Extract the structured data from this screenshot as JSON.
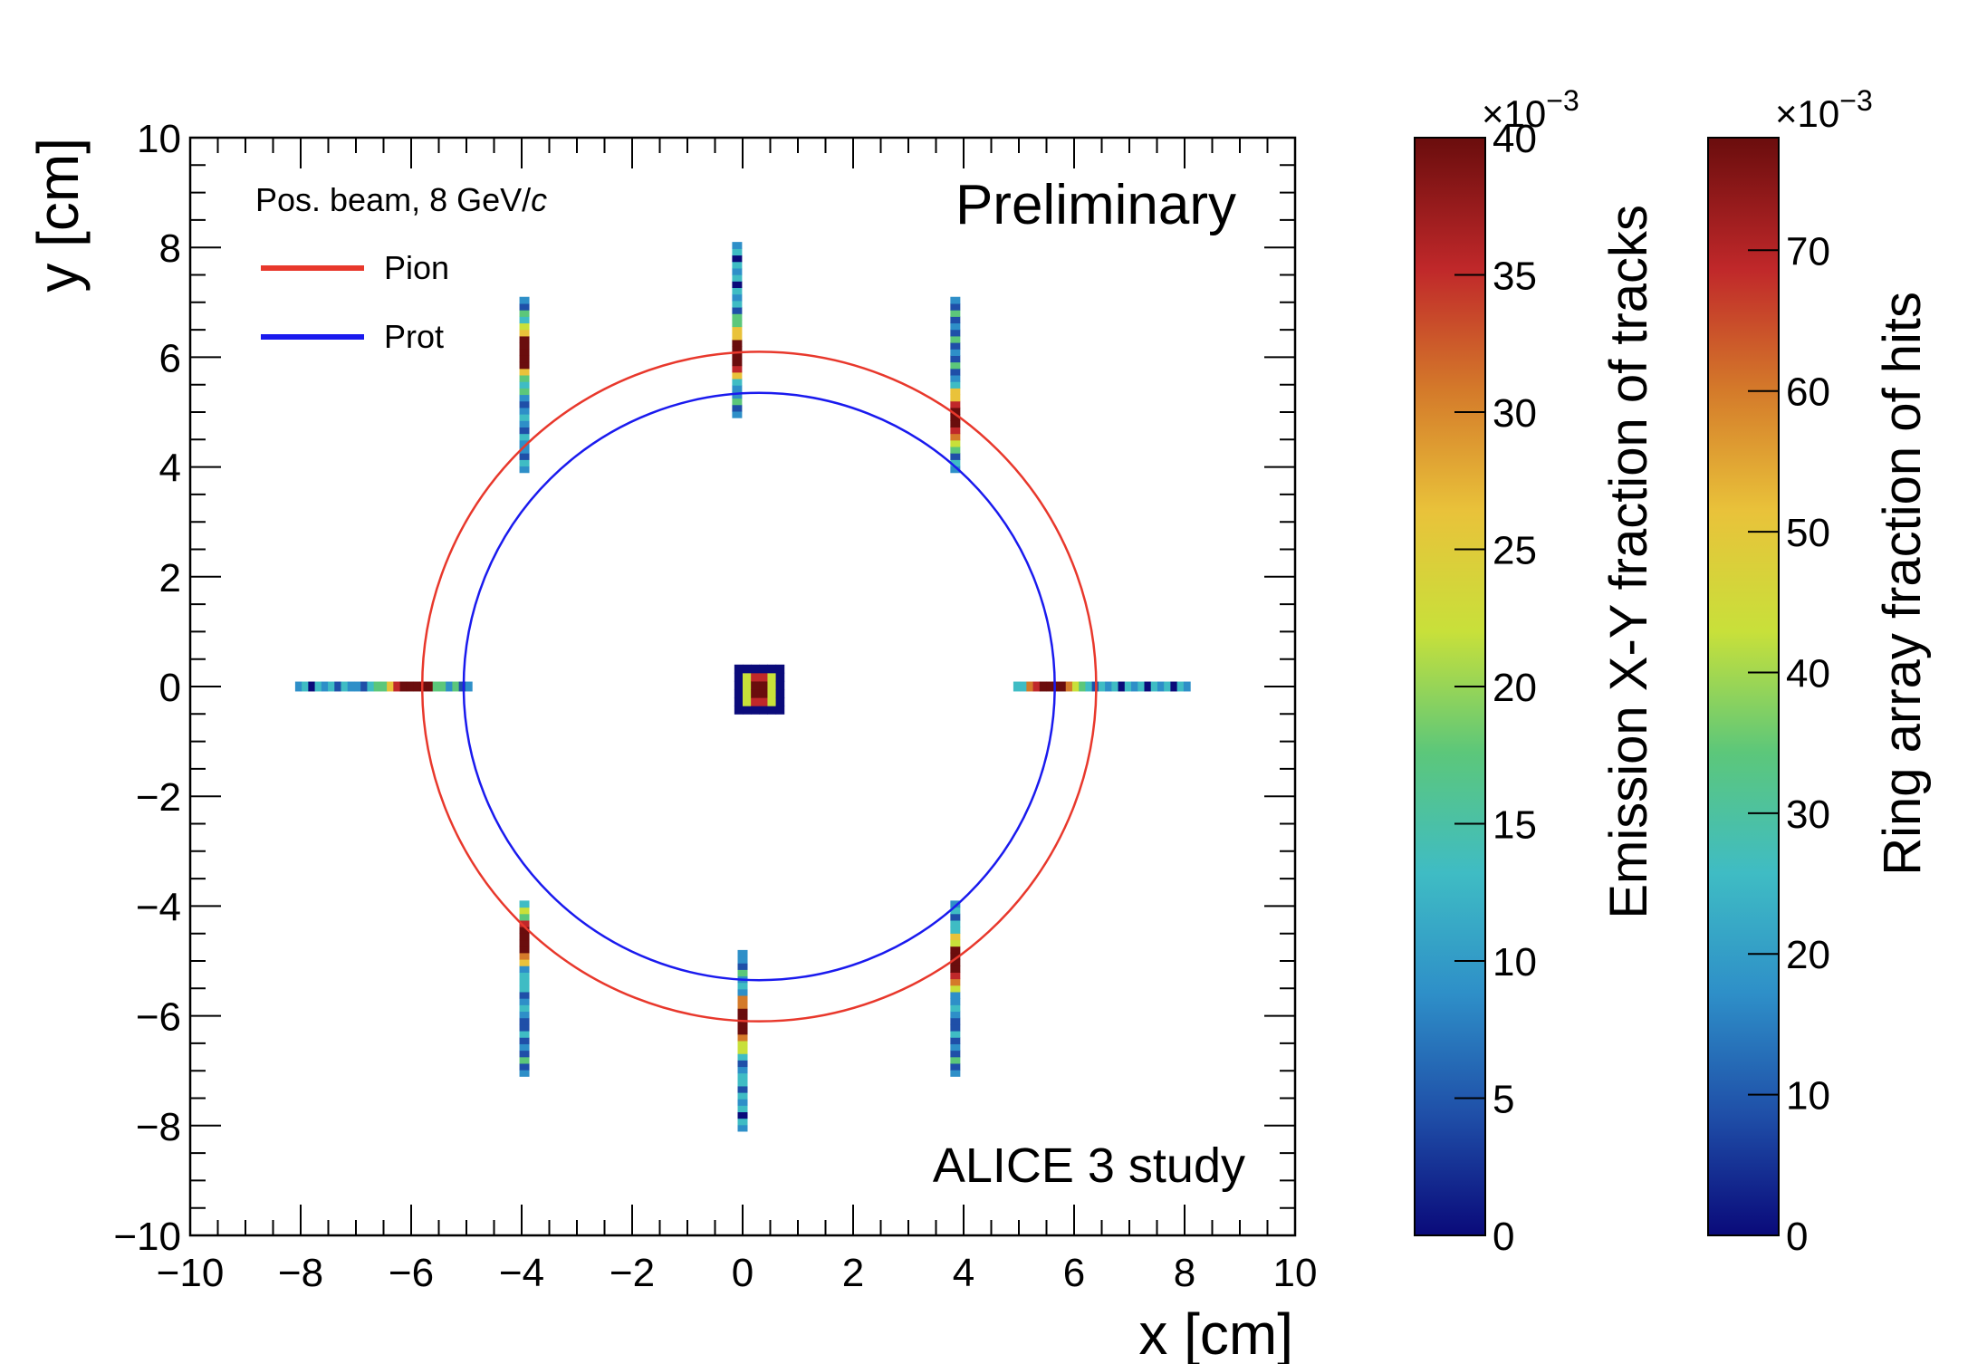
{
  "chart_data": {
    "type": "heatmap",
    "title": "",
    "xlabel": "x [cm]",
    "ylabel": "y [cm]",
    "xlim": [
      -10,
      10
    ],
    "ylim": [
      -10,
      10
    ],
    "x_ticks": [
      -10,
      -8,
      -6,
      -4,
      -2,
      0,
      2,
      4,
      6,
      8,
      10
    ],
    "y_ticks": [
      -10,
      -8,
      -6,
      -4,
      -2,
      0,
      2,
      4,
      6,
      8,
      10
    ],
    "x_tick_labels": [
      "−10",
      "−8",
      "−6",
      "−4",
      "−2",
      "0",
      "2",
      "4",
      "6",
      "8",
      "10"
    ],
    "y_tick_labels": [
      "−10",
      "−8",
      "−6",
      "−4",
      "−2",
      "0",
      "2",
      "4",
      "6",
      "8",
      "10"
    ],
    "annotations": {
      "preliminary": "Preliminary",
      "study": "ALICE 3 study"
    },
    "legend": {
      "title": "Pos. beam, 8 GeV/",
      "title_italic": "c",
      "position": "top-left",
      "entries": [
        {
          "label": "Pion",
          "color": "#e8382c"
        },
        {
          "label": "Prot",
          "color": "#1a1aee"
        }
      ]
    },
    "rings": [
      {
        "name": "Pion",
        "cx": 0.3,
        "cy": 0.0,
        "r": 6.1,
        "color": "#e8382c"
      },
      {
        "name": "Prot",
        "cx": 0.3,
        "cy": 0.0,
        "r": 5.35,
        "color": "#1a1aee"
      }
    ],
    "emission_hotspot": {
      "x_range": [
        -0.15,
        0.75
      ],
      "y_range": [
        -0.5,
        0.4
      ]
    },
    "detector_strips": [
      {
        "orientation": "vertical",
        "x": -3.95,
        "range": [
          3.9,
          7.1
        ],
        "peak": 6.1
      },
      {
        "orientation": "vertical",
        "x": -0.1,
        "range": [
          4.9,
          8.1
        ],
        "peak": 6.1
      },
      {
        "orientation": "vertical",
        "x": 3.85,
        "range": [
          3.9,
          7.1
        ],
        "peak": 4.9
      },
      {
        "orientation": "vertical",
        "x": -3.95,
        "range": [
          -7.1,
          -3.9
        ],
        "peak": -4.6
      },
      {
        "orientation": "vertical",
        "x": 0.0,
        "range": [
          -8.1,
          -4.8
        ],
        "peak": -6.1
      },
      {
        "orientation": "vertical",
        "x": 3.85,
        "range": [
          -7.1,
          -3.9
        ],
        "peak": -5.0
      },
      {
        "orientation": "horizontal",
        "y": 0.0,
        "range": [
          -8.1,
          -4.9
        ],
        "peak": -6.0
      },
      {
        "orientation": "horizontal",
        "y": 0.0,
        "range": [
          4.9,
          8.1
        ],
        "peak": 5.6
      }
    ],
    "colorbars": [
      {
        "title": "Emission X-Y fraction of tracks",
        "exponent": "×10",
        "exponent_power": "−3",
        "range": [
          0,
          40
        ],
        "ticks": [
          0,
          5,
          10,
          15,
          20,
          25,
          30,
          35,
          40
        ],
        "tick_labels": [
          "0",
          "5",
          "10",
          "15",
          "20",
          "25",
          "30",
          "35",
          "40"
        ]
      },
      {
        "title": "Ring array fraction of hits",
        "exponent": "×10",
        "exponent_power": "−3",
        "range": [
          0,
          78
        ],
        "ticks": [
          0,
          10,
          20,
          30,
          40,
          50,
          60,
          70
        ],
        "tick_labels": [
          "0",
          "10",
          "20",
          "30",
          "40",
          "50",
          "60",
          "70"
        ]
      }
    ],
    "colormap": [
      "#0a0a7a",
      "#1f4fa8",
      "#2e8fc8",
      "#3fbcc4",
      "#5cc77a",
      "#c8e03a",
      "#e9c23a",
      "#d47a2a",
      "#c0282a",
      "#6a0d0d"
    ]
  }
}
